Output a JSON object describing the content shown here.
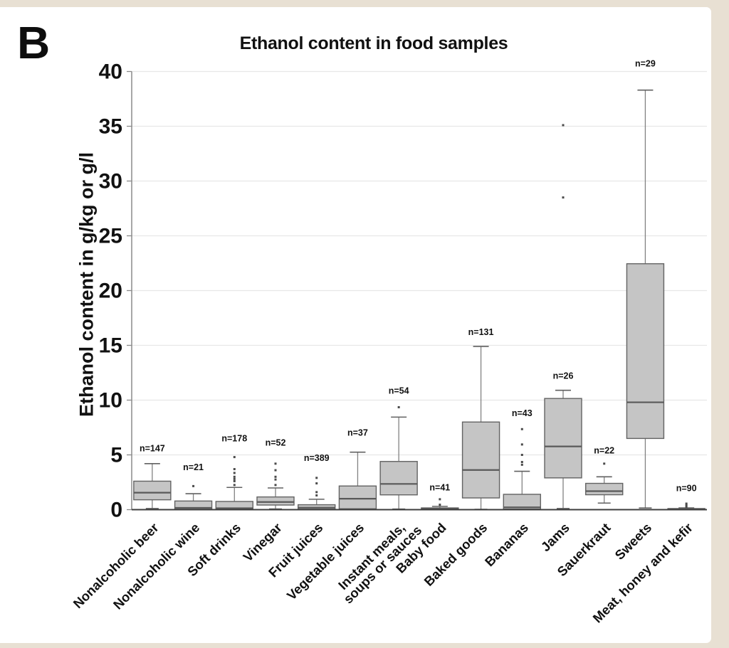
{
  "figure": {
    "panel_label": "B"
  },
  "chart_data": {
    "type": "boxplot",
    "title": "Ethanol content in food samples",
    "ylabel": "Ethanol content in g/kg or g/l",
    "xlabel": "",
    "ylim": [
      0,
      40
    ],
    "ytick_step": 5,
    "grid": "horizontal",
    "legend": "none",
    "units": "g/kg or g/l",
    "colors": {
      "page_bg": "#e8e0d3",
      "figure_bg": "#ffffff",
      "box_fill": "#c5c5c5",
      "box_stroke": "#636363",
      "median": "#595959",
      "whisker": "#828282",
      "cap": "#606060",
      "outlier": "#4a4a4a",
      "gridline": "#e7e7e7",
      "axis": "#8a8a8a",
      "baseline": "#3d3d3d",
      "text": "#111111"
    },
    "categories": [
      {
        "label": [
          "Nonalcoholic beer"
        ],
        "n": 147,
        "n_label": "n=147",
        "n_label_v": 5.6,
        "low": 0.1,
        "q1": 0.9,
        "median": 1.55,
        "q3": 2.6,
        "high": 4.2,
        "outliers": []
      },
      {
        "label": [
          "Nonalcoholic wine"
        ],
        "n": 21,
        "n_label": "n=21",
        "n_label_v": 3.85,
        "low": 0.02,
        "q1": 0.04,
        "median": 0.16,
        "q3": 0.79,
        "high": 1.46,
        "outliers": [
          2.15
        ]
      },
      {
        "label": [
          "Soft drinks"
        ],
        "n": 178,
        "n_label": "n=178",
        "n_label_v": 6.5,
        "low": 0.01,
        "q1": 0.02,
        "median": 0.13,
        "q3": 0.75,
        "high": 2.03,
        "outliers": [
          2.25,
          2.6,
          2.8,
          3.0,
          3.35,
          3.7,
          4.8
        ]
      },
      {
        "label": [
          "Vinegar"
        ],
        "n": 52,
        "n_label": "n=52",
        "n_label_v": 6.1,
        "low": 0.06,
        "q1": 0.42,
        "median": 0.7,
        "q3": 1.16,
        "high": 1.98,
        "outliers": [
          2.25,
          2.75,
          3.0,
          3.6,
          4.2
        ]
      },
      {
        "label": [
          "Fruit juices"
        ],
        "n": 389,
        "n_label": "n=389",
        "n_label_v": 4.7,
        "low": 0.02,
        "q1": 0.04,
        "median": 0.18,
        "q3": 0.45,
        "high": 0.95,
        "outliers": [
          1.3,
          1.6,
          2.4,
          2.9
        ]
      },
      {
        "label": [
          "Vegetable juices"
        ],
        "n": 37,
        "n_label": "n=37",
        "n_label_v": 7.0,
        "low": 0.03,
        "q1": 0.08,
        "median": 1.0,
        "q3": 2.16,
        "high": 5.25,
        "outliers": []
      },
      {
        "label": [
          "Instant meals,",
          "soups or sauces"
        ],
        "n": 54,
        "n_label": "n=54",
        "n_label_v": 10.85,
        "low": 0.05,
        "q1": 1.35,
        "median": 2.35,
        "q3": 4.4,
        "high": 8.45,
        "outliers": [
          9.35
        ]
      },
      {
        "label": [
          "Baby food"
        ],
        "n": 41,
        "n_label": "n=41",
        "n_label_v": 2.0,
        "low": 0.01,
        "q1": 0.02,
        "median": 0.08,
        "q3": 0.16,
        "high": 0.3,
        "outliers": [
          0.45,
          0.95
        ]
      },
      {
        "label": [
          "Baked goods"
        ],
        "n": 131,
        "n_label": "n=131",
        "n_label_v": 16.2,
        "low": 0.03,
        "q1": 1.07,
        "median": 3.62,
        "q3": 8.0,
        "high": 14.9,
        "outliers": []
      },
      {
        "label": [
          "Bananas"
        ],
        "n": 43,
        "n_label": "n=43",
        "n_label_v": 8.8,
        "low": 0.02,
        "q1": 0.05,
        "median": 0.21,
        "q3": 1.4,
        "high": 3.5,
        "outliers": [
          4.1,
          4.35,
          5.0,
          5.95,
          7.35
        ]
      },
      {
        "label": [
          "Jams"
        ],
        "n": 26,
        "n_label": "n=26",
        "n_label_v": 12.2,
        "low": 0.1,
        "q1": 2.9,
        "median": 5.77,
        "q3": 10.15,
        "high": 10.9,
        "outliers": [
          28.5,
          35.1
        ]
      },
      {
        "label": [
          "Sauerkraut"
        ],
        "n": 22,
        "n_label": "n=22",
        "n_label_v": 5.4,
        "low": 0.6,
        "q1": 1.36,
        "median": 1.69,
        "q3": 2.4,
        "high": 3.0,
        "outliers": [
          4.2
        ]
      },
      {
        "label": [
          "Sweets"
        ],
        "n": 29,
        "n_label": "n=29",
        "n_label_v": 40.7,
        "low": 0.15,
        "q1": 6.5,
        "median": 9.8,
        "q3": 22.45,
        "high": 38.3,
        "outliers": []
      },
      {
        "label": [
          "Meat, honey and kefir"
        ],
        "n": 90,
        "n_label": "n=90",
        "n_label_v": 1.95,
        "low": 0.01,
        "q1": 0.02,
        "median": 0.05,
        "q3": 0.1,
        "high": 0.16,
        "outliers": [
          0.25,
          0.4,
          0.55
        ]
      }
    ]
  }
}
